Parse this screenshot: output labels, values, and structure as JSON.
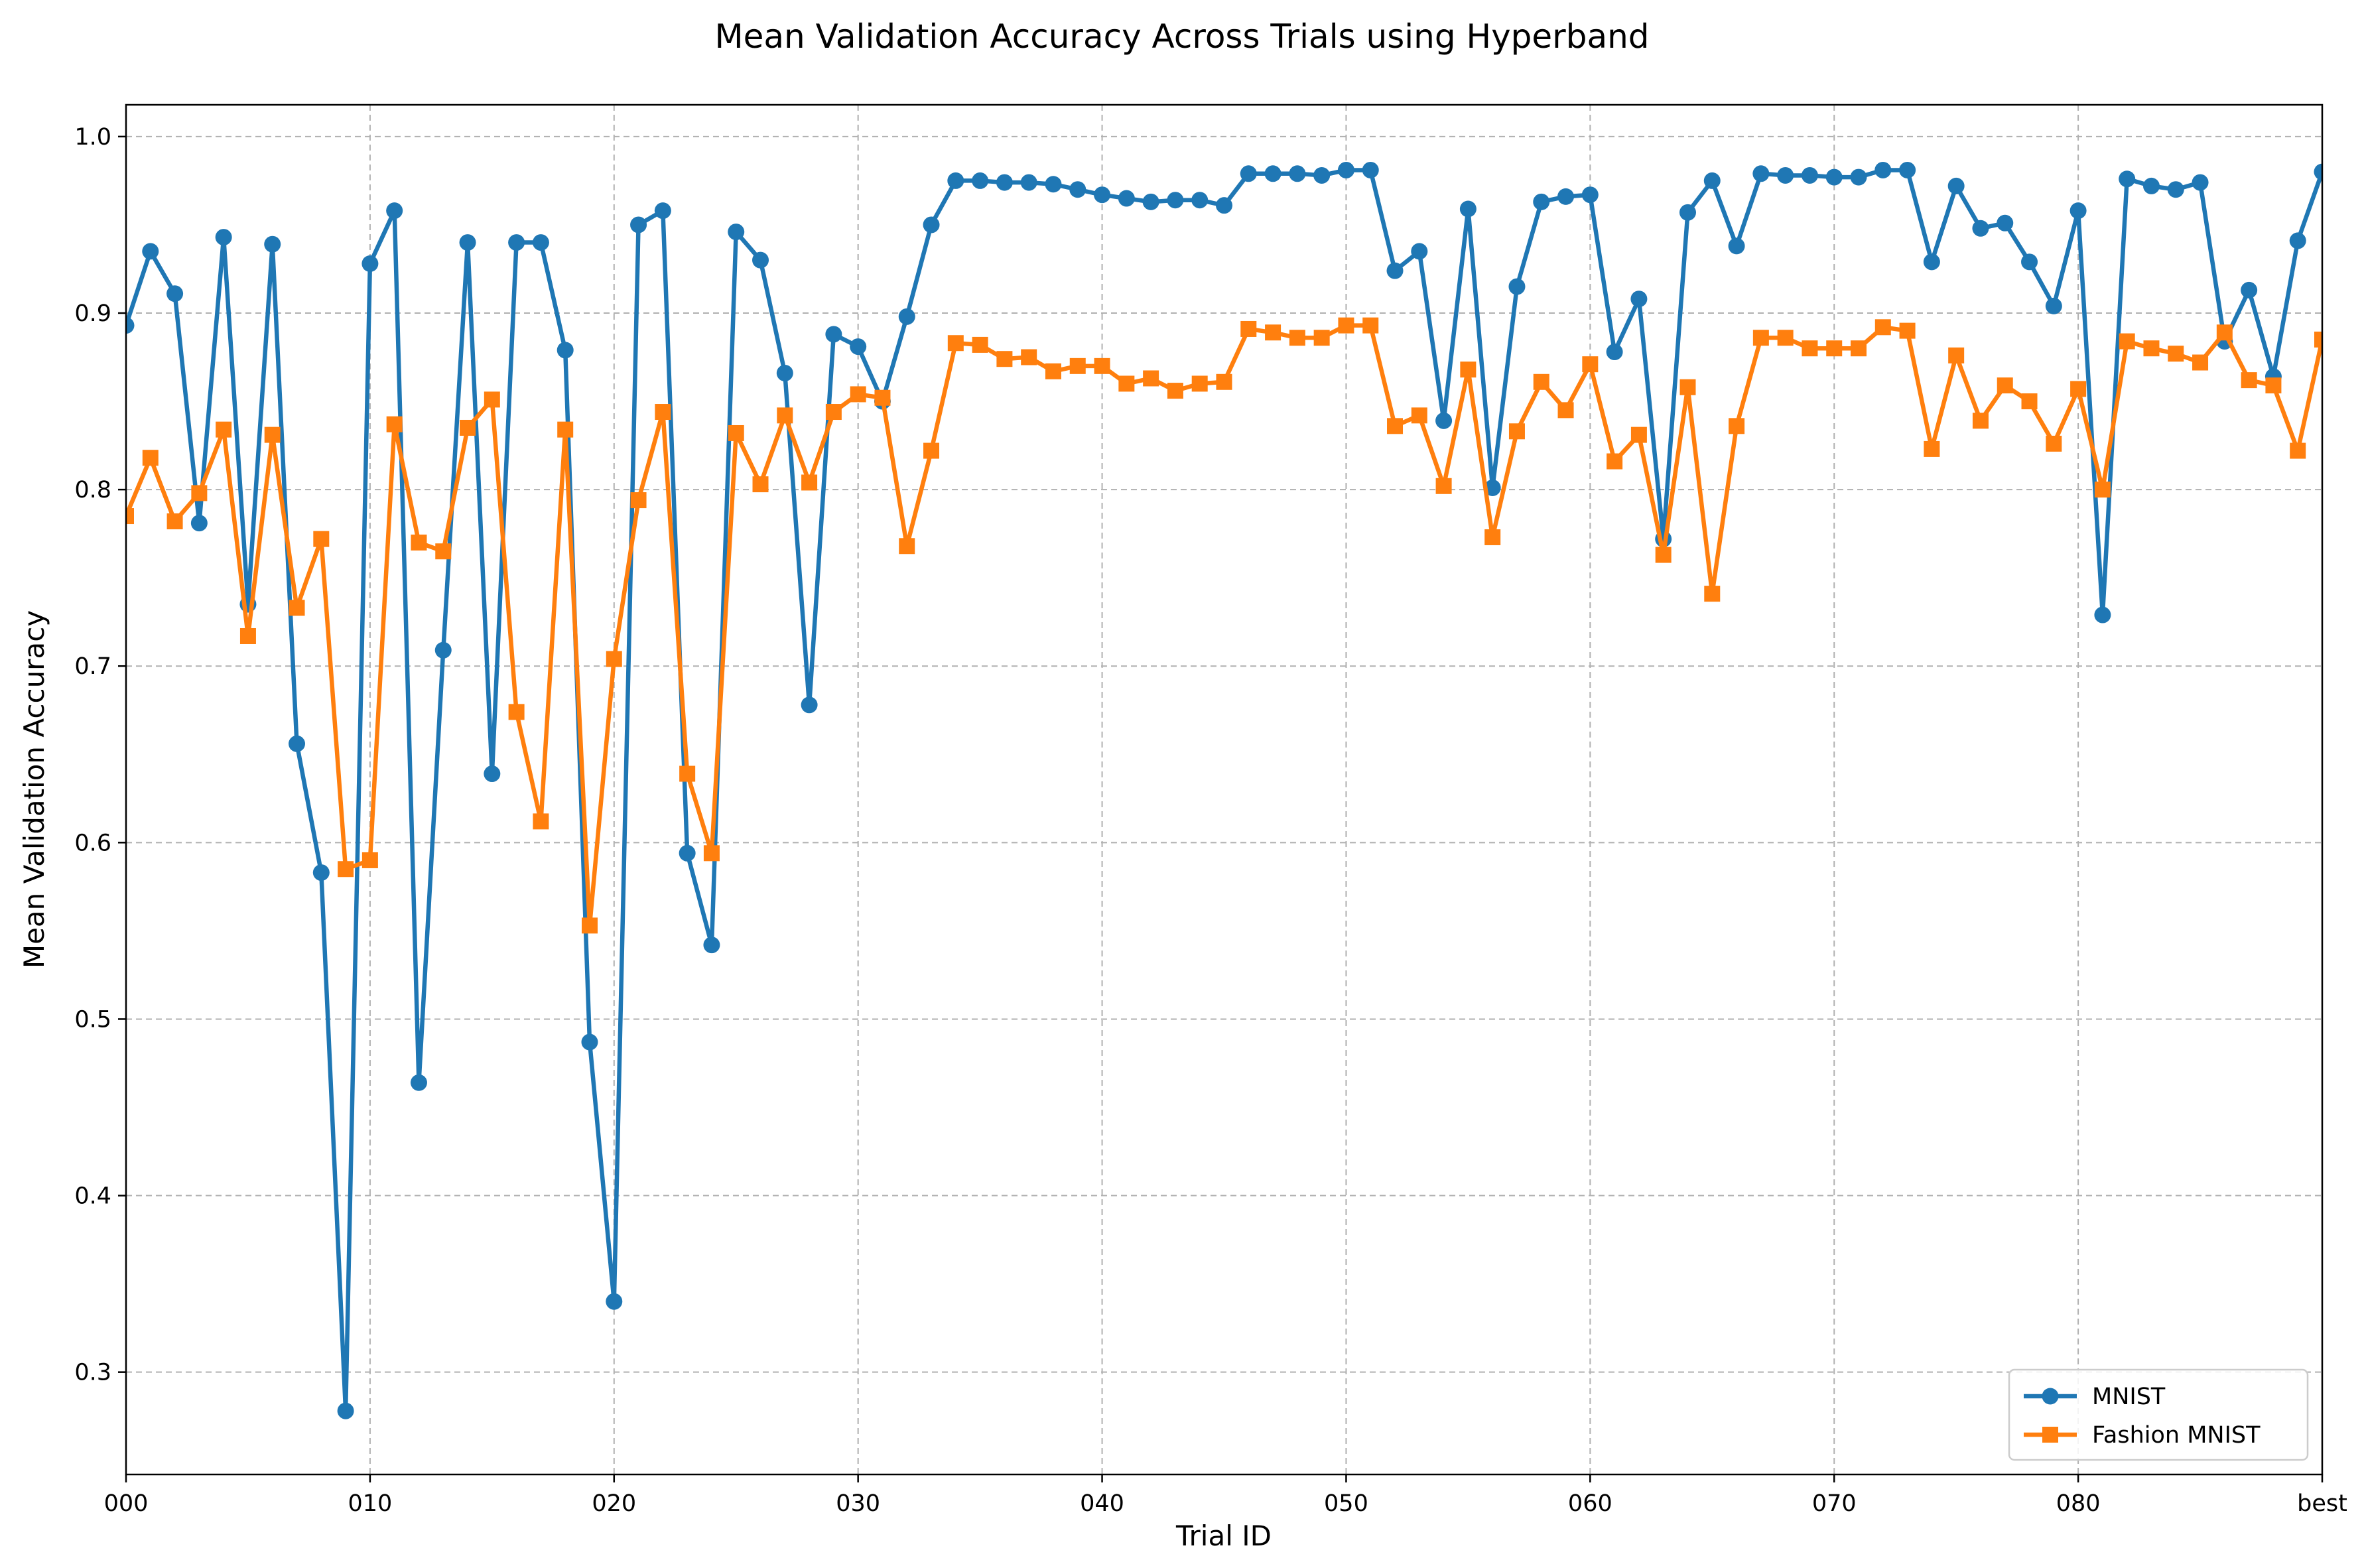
{
  "chart_data": {
    "type": "line",
    "title": "Mean Validation Accuracy Across Trials using Hyperband",
    "xlabel": "Trial ID",
    "ylabel": "Mean Validation Accuracy",
    "x_tick_labels": [
      "000",
      "010",
      "020",
      "030",
      "040",
      "050",
      "060",
      "070",
      "080",
      "best"
    ],
    "y_ticks": [
      0.3,
      0.4,
      0.5,
      0.6,
      0.7,
      0.8,
      0.9,
      1.0
    ],
    "y_tick_labels": [
      "0.3",
      "0.4",
      "0.5",
      "0.6",
      "0.7",
      "0.8",
      "0.9",
      "1.0"
    ],
    "xlim": [
      0,
      90
    ],
    "ylim": [
      0.242,
      1.018
    ],
    "grid": true,
    "legend_position": "lower-right",
    "series": [
      {
        "name": "MNIST",
        "color": "#1f77b4",
        "marker": "circle",
        "values": [
          0.893,
          0.935,
          0.911,
          0.781,
          0.943,
          0.735,
          0.939,
          0.656,
          0.583,
          0.278,
          0.928,
          0.958,
          0.464,
          0.709,
          0.94,
          0.639,
          0.94,
          0.94,
          0.879,
          0.487,
          0.34,
          0.95,
          0.958,
          0.594,
          0.542,
          0.946,
          0.93,
          0.866,
          0.678,
          0.888,
          0.881,
          0.85,
          0.898,
          0.95,
          0.975,
          0.975,
          0.974,
          0.974,
          0.973,
          0.97,
          0.967,
          0.965,
          0.963,
          0.964,
          0.964,
          0.961,
          0.979,
          0.979,
          0.979,
          0.978,
          0.981,
          0.981,
          0.924,
          0.935,
          0.839,
          0.959,
          0.801,
          0.915,
          0.963,
          0.966,
          0.967,
          0.878,
          0.908,
          0.772,
          0.957,
          0.975,
          0.938,
          0.979,
          0.978,
          0.978,
          0.977,
          0.977,
          0.981,
          0.981,
          0.929,
          0.972,
          0.948,
          0.951,
          0.929,
          0.904,
          0.958,
          0.729,
          0.976,
          0.972,
          0.97,
          0.974,
          0.884,
          0.913,
          0.864,
          0.941,
          0.98
        ]
      },
      {
        "name": "Fashion MNIST",
        "color": "#ff7f0e",
        "marker": "square",
        "values": [
          0.785,
          0.818,
          0.782,
          0.798,
          0.834,
          0.717,
          0.831,
          0.733,
          0.772,
          0.585,
          0.59,
          0.837,
          0.77,
          0.765,
          0.835,
          0.851,
          0.674,
          0.612,
          0.834,
          0.553,
          0.704,
          0.794,
          0.844,
          0.639,
          0.594,
          0.832,
          0.803,
          0.842,
          0.804,
          0.844,
          0.854,
          0.852,
          0.768,
          0.822,
          0.883,
          0.882,
          0.874,
          0.875,
          0.867,
          0.87,
          0.87,
          0.86,
          0.863,
          0.856,
          0.86,
          0.861,
          0.891,
          0.889,
          0.886,
          0.886,
          0.893,
          0.893,
          0.836,
          0.842,
          0.802,
          0.868,
          0.773,
          0.833,
          0.861,
          0.845,
          0.871,
          0.816,
          0.831,
          0.763,
          0.858,
          0.741,
          0.836,
          0.886,
          0.886,
          0.88,
          0.88,
          0.88,
          0.892,
          0.89,
          0.823,
          0.876,
          0.839,
          0.859,
          0.85,
          0.826,
          0.857,
          0.8,
          0.884,
          0.88,
          0.877,
          0.872,
          0.889,
          0.862,
          0.859,
          0.822,
          0.885
        ]
      }
    ]
  }
}
